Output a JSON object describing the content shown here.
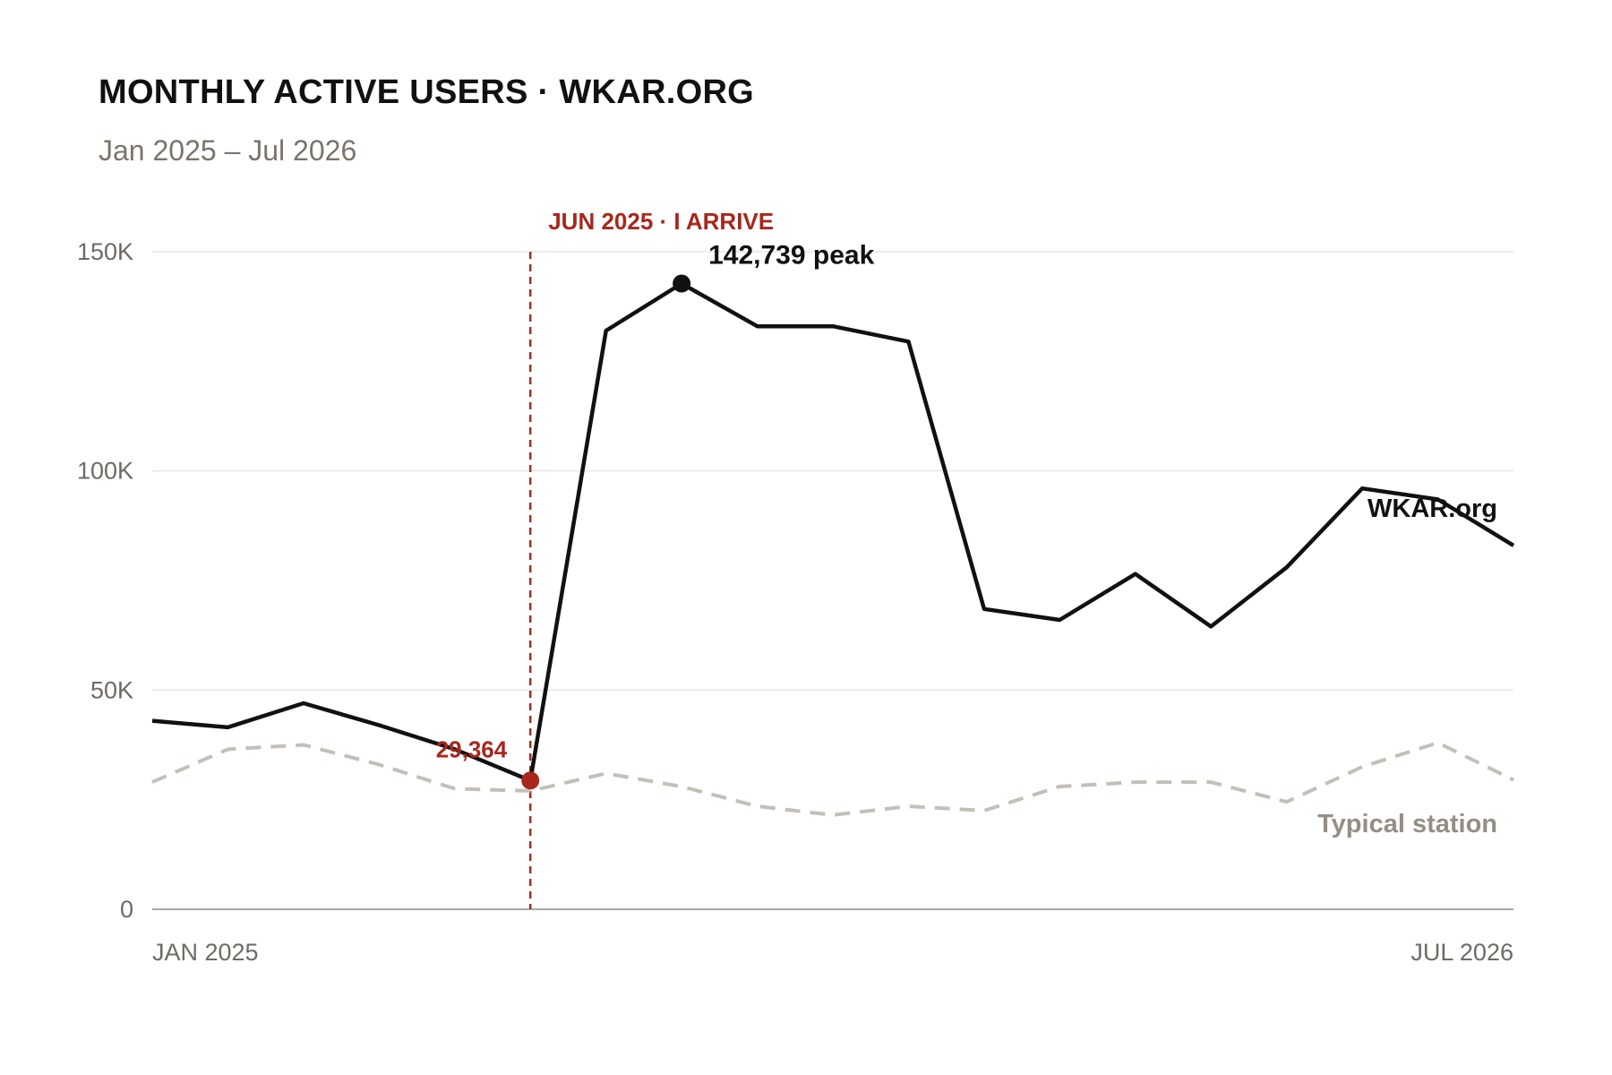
{
  "chart_data": {
    "type": "line",
    "title": "MONTHLY ACTIVE USERS · WKAR.ORG",
    "subtitle": "Jan 2025 – Jul 2026",
    "x": [
      "2025-01",
      "2025-02",
      "2025-03",
      "2025-04",
      "2025-05",
      "2025-06",
      "2025-07",
      "2025-08",
      "2025-09",
      "2025-10",
      "2025-11",
      "2025-12",
      "2026-01",
      "2026-02",
      "2026-03",
      "2026-04",
      "2026-05",
      "2026-06",
      "2026-07"
    ],
    "x_tick_labels": [
      {
        "x": "2025-01",
        "label": "JAN 2025"
      },
      {
        "x": "2026-07",
        "label": "JUL 2026"
      }
    ],
    "y_ticks": [
      0,
      50000,
      100000,
      150000
    ],
    "y_tick_labels": [
      "0",
      "50K",
      "100K",
      "150K"
    ],
    "ylim": [
      0,
      150000
    ],
    "grid": true,
    "series": [
      {
        "name": "WKAR.org",
        "style": "solid",
        "color": "#111111",
        "values": [
          43000,
          41500,
          47000,
          42000,
          36500,
          29364,
          132000,
          142739,
          133000,
          133000,
          129500,
          68500,
          66000,
          76500,
          64500,
          78000,
          96000,
          93500,
          83000
        ]
      },
      {
        "name": "Typical station",
        "style": "dashed",
        "color": "#c4bfb7",
        "values": [
          29000,
          36500,
          37500,
          33000,
          27500,
          27000,
          31000,
          28000,
          23500,
          21500,
          23500,
          22500,
          28000,
          29000,
          29000,
          24500,
          32500,
          38000,
          29500
        ]
      }
    ],
    "annotations": [
      {
        "type": "vline",
        "x": "2025-06",
        "label": "JUN 2025 · I ARRIVE",
        "color": "#a8271c"
      },
      {
        "type": "point",
        "series": "WKAR.org",
        "x": "2025-06",
        "value": 29364,
        "label": "29,364",
        "color": "#a8271c"
      },
      {
        "type": "point",
        "series": "WKAR.org",
        "x": "2025-08",
        "value": 142739,
        "label": "142,739 peak",
        "color": "#111111"
      }
    ]
  }
}
